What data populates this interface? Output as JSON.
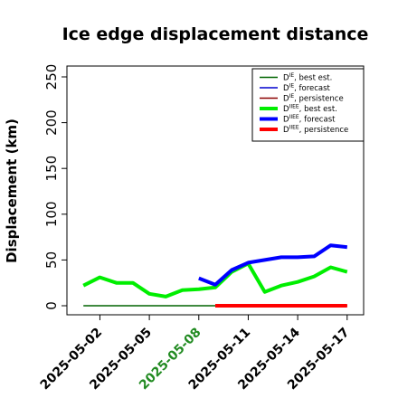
{
  "chart_data": {
    "type": "line",
    "title": "Ice edge displacement distance",
    "ylabel": "Displacement (km)",
    "xlabel": "",
    "ylim": [
      0,
      260
    ],
    "yticks": [
      0,
      50,
      100,
      150,
      200,
      250
    ],
    "xticks": [
      "2025-05-02",
      "2025-05-05",
      "2025-05-08",
      "2025-05-11",
      "2025-05-14",
      "2025-05-17"
    ],
    "highlight_xtick": "2025-05-08",
    "highlight_color": "#228B22",
    "x_range": [
      "2025-04-30",
      "2025-05-18"
    ],
    "legend_position": "top-right",
    "grid": false,
    "series": [
      {
        "name": "D_IE, best est.",
        "sym": "D",
        "sup": "IE",
        "desc": ", best est.",
        "color": "#006400",
        "width": 1.5,
        "x": [
          "2025-05-01",
          "2025-05-02",
          "2025-05-03",
          "2025-05-04",
          "2025-05-05",
          "2025-05-06",
          "2025-05-07",
          "2025-05-08",
          "2025-05-09",
          "2025-05-10",
          "2025-05-11",
          "2025-05-12",
          "2025-05-13",
          "2025-05-14",
          "2025-05-15",
          "2025-05-16",
          "2025-05-17"
        ],
        "y": [
          0,
          0,
          0,
          0,
          0,
          0,
          0,
          0,
          0,
          0,
          0,
          0,
          0,
          0,
          0,
          0,
          0
        ]
      },
      {
        "name": "D_IE, forecast",
        "sym": "D",
        "sup": "IE",
        "desc": ", forecast",
        "color": "#0000CD",
        "width": 1.5,
        "x": [],
        "y": []
      },
      {
        "name": "D_IE, persistence",
        "sym": "D",
        "sup": "IE",
        "desc": ", persistence",
        "color": "#8B0000",
        "width": 1.5,
        "x": [
          "2025-05-09",
          "2025-05-10",
          "2025-05-11",
          "2025-05-12",
          "2025-05-13",
          "2025-05-14",
          "2025-05-15",
          "2025-05-16",
          "2025-05-17"
        ],
        "y": [
          0,
          0,
          0,
          0,
          0,
          0,
          0,
          0,
          0
        ]
      },
      {
        "name": "D_IIEE, best est.",
        "sym": "D",
        "sup": "IIEE",
        "desc": ", best est.",
        "color": "#00EE00",
        "width": 4,
        "x": [
          "2025-05-01",
          "2025-05-02",
          "2025-05-03",
          "2025-05-04",
          "2025-05-05",
          "2025-05-06",
          "2025-05-07",
          "2025-05-08",
          "2025-05-09",
          "2025-05-10",
          "2025-05-11",
          "2025-05-12",
          "2025-05-13",
          "2025-05-14",
          "2025-05-15",
          "2025-05-16",
          "2025-05-17"
        ],
        "y": [
          22,
          31,
          25,
          25,
          13,
          10,
          17,
          18,
          20,
          37,
          46,
          15,
          22,
          26,
          32,
          42,
          37
        ]
      },
      {
        "name": "D_IIEE, forecast",
        "sym": "D",
        "sup": "IIEE",
        "desc": ", forecast",
        "color": "#0000FF",
        "width": 4,
        "x": [
          "2025-05-08",
          "2025-05-09",
          "2025-05-10",
          "2025-05-11",
          "2025-05-12",
          "2025-05-13",
          "2025-05-14",
          "2025-05-15",
          "2025-05-16",
          "2025-05-17"
        ],
        "y": [
          30,
          23,
          39,
          47,
          50,
          53,
          53,
          54,
          66,
          64
        ]
      },
      {
        "name": "D_IIEE, persistence",
        "sym": "D",
        "sup": "IIEE",
        "desc": ", persistence",
        "color": "#FF0000",
        "width": 4,
        "x": [
          "2025-05-09",
          "2025-05-10",
          "2025-05-11",
          "2025-05-12",
          "2025-05-13",
          "2025-05-14",
          "2025-05-15",
          "2025-05-16",
          "2025-05-17"
        ],
        "y": [
          0,
          0,
          0,
          0,
          0,
          0,
          0,
          0,
          0
        ]
      }
    ]
  }
}
